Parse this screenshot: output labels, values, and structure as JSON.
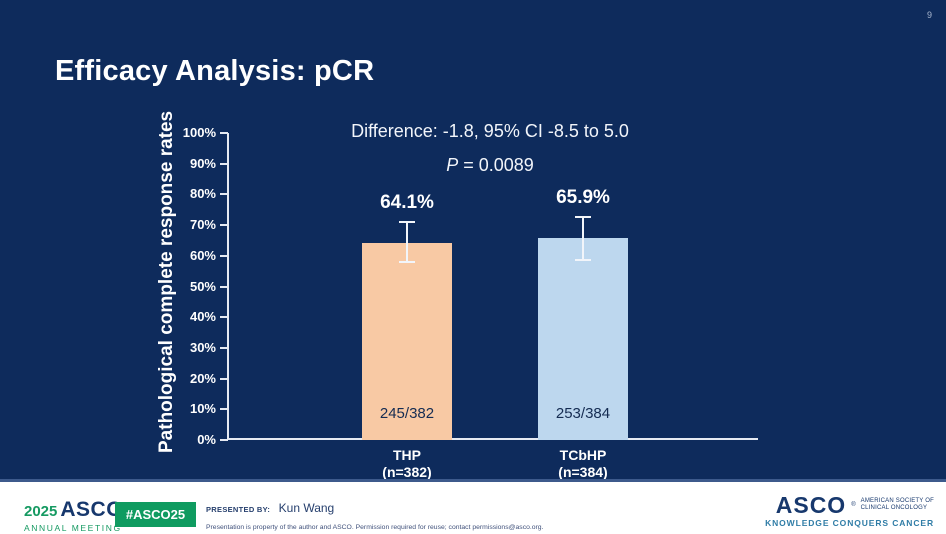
{
  "slide": {
    "page_number": "9",
    "title": "Efficacy Analysis: pCR"
  },
  "annotations": {
    "difference": "Difference: -1.8, 95% CI -8.5 to 5.0",
    "p_italic": "P",
    "p_rest": "= 0.0089"
  },
  "chart_data": {
    "type": "bar",
    "title": "Efficacy Analysis: pCR",
    "xlabel": "",
    "ylabel": "Pathological complete response rates",
    "ylim": [
      0,
      100
    ],
    "ytick_step": 10,
    "ytick_suffix": "%",
    "grid": false,
    "categories": [
      "THP",
      "TCbHP"
    ],
    "category_sublabels": [
      "(n=382)",
      "(n=384)"
    ],
    "series": [
      {
        "name": "pCR rate",
        "values": [
          64.1,
          65.9
        ],
        "value_labels": [
          "64.1%",
          "65.9%"
        ],
        "bar_labels": [
          "245/382",
          "253/384"
        ],
        "bar_colors": [
          "#F8C9A4",
          "#BDD7EE"
        ],
        "error_low": [
          58.0,
          58.5
        ],
        "error_high": [
          71.0,
          72.5
        ]
      }
    ],
    "annotations": [
      "Difference: -1.8, 95% CI -8.5 to 5.0",
      "P = 0.0089"
    ]
  },
  "footer": {
    "meeting_year": "2025",
    "meeting_org": "ASCO",
    "registered": "®",
    "meeting_name": "ANNUAL MEETING",
    "hashtag": "#ASCO25",
    "presented_by_label": "PRESENTED BY:",
    "presenter": "Kun Wang",
    "disclaimer": "Presentation is property of the author and ASCO. Permission required for reuse; contact permissions@asco.org.",
    "org_name": "ASCO",
    "org_full_line1": "AMERICAN SOCIETY OF",
    "org_full_line2": "CLINICAL ONCOLOGY",
    "org_tagline": "KNOWLEDGE CONQUERS CANCER"
  },
  "colors": {
    "background": "#0E2B5C",
    "bar_thp": "#F8C9A4",
    "bar_tcbhp": "#BDD7EE",
    "axis": "#E6EAF2",
    "footer_green": "#0F9B60",
    "asco_navy": "#17386D",
    "tagline_blue": "#2F7CA6"
  }
}
